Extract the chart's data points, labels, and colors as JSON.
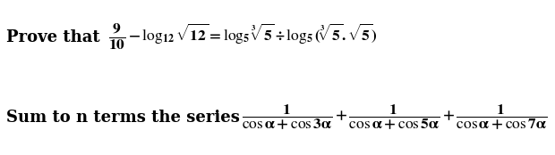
{
  "background_color": "#ffffff",
  "text_color": "#000000",
  "figsize": [
    6.2,
    1.74
  ],
  "dpi": 100,
  "line1_bold": "Prove that ",
  "line1_math": "$\\mathbf{\\dfrac{9}{10} - \\log_{12}\\sqrt{12} = \\log_5 \\sqrt[3]{5} \\div \\log_5(\\sqrt[3]{5}.\\sqrt{5})}$",
  "line2_bold": "Sum to n terms the series ",
  "line2_math": "$\\mathbf{\\dfrac{1}{\\cos\\alpha+\\cos 3\\alpha} + \\dfrac{1}{\\cos\\alpha+\\cos 5\\alpha} + \\dfrac{1}{\\cos\\alpha+\\cos 7\\alpha}}$",
  "fontsize_bold": 13,
  "fontsize_math": 12.5
}
